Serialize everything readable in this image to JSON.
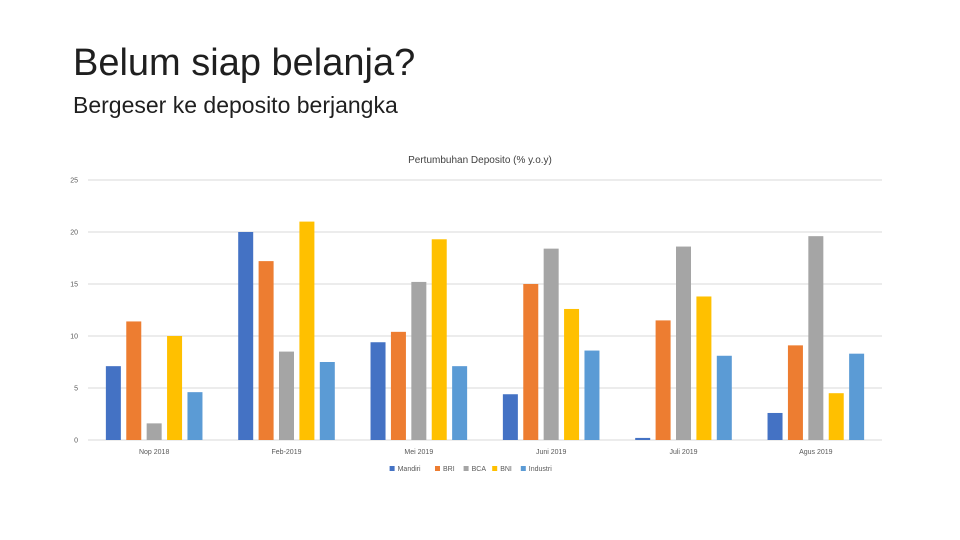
{
  "slide": {
    "title": "Belum siap belanja?",
    "subtitle": "Bergeser ke deposito berjangka"
  },
  "chart_data": {
    "type": "bar",
    "title": "Pertumbuhan Deposito (% y.o.y)",
    "categories": [
      "Nop 2018",
      "Feb-2019",
      "Mei 2019",
      "Juni 2019",
      "Juli 2019",
      "Agus 2019"
    ],
    "series": [
      {
        "name": "Mandiri",
        "color": "#4472C4",
        "values": [
          7.1,
          20.0,
          9.4,
          4.4,
          0.2,
          2.6
        ]
      },
      {
        "name": "BRI",
        "color": "#ED7D31",
        "values": [
          11.4,
          17.2,
          10.4,
          15.0,
          11.5,
          9.1
        ]
      },
      {
        "name": "BCA",
        "color": "#A5A5A5",
        "values": [
          1.6,
          8.5,
          15.2,
          18.4,
          18.6,
          19.6
        ]
      },
      {
        "name": "BNI",
        "color": "#FFC000",
        "values": [
          10.0,
          21.0,
          19.3,
          12.6,
          13.8,
          4.5
        ]
      },
      {
        "name": "Industri",
        "color": "#5B9BD5",
        "values": [
          4.6,
          7.5,
          7.1,
          8.6,
          8.1,
          8.3
        ]
      }
    ],
    "y_ticks": [
      "0",
      "5",
      "10",
      "15",
      "20",
      "25"
    ],
    "ylim": [
      0,
      25
    ],
    "grid": true,
    "legend": "bottom"
  }
}
